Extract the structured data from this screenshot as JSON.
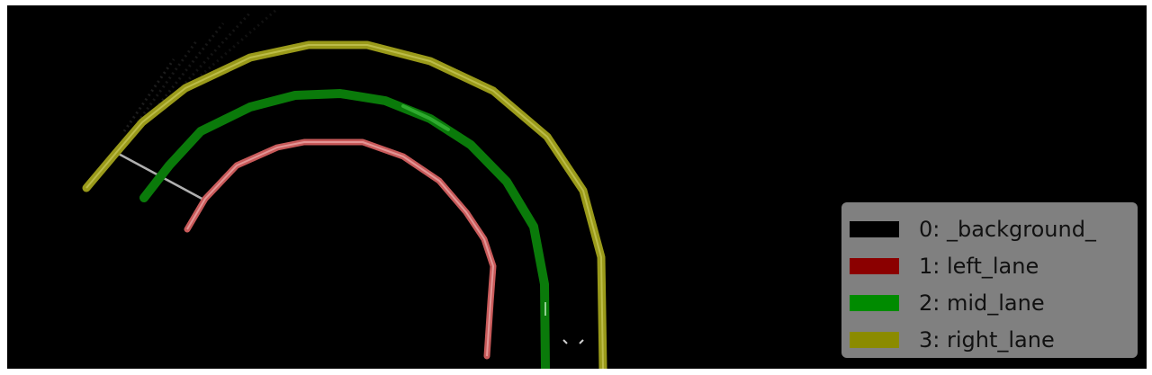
{
  "image": {
    "background_color": "#000000",
    "description_role": "segmentation-overlay"
  },
  "lanes": [
    {
      "name": "left_lane",
      "color": "#c85a5a",
      "edge_color": "#e8a0a0"
    },
    {
      "name": "mid_lane",
      "color": "#0a7a0a",
      "edge_color": "#3fbf3f"
    },
    {
      "name": "right_lane",
      "color": "#9a9a1a",
      "edge_color": "#d8d870"
    }
  ],
  "legend": {
    "items": [
      {
        "label": "0: _background_",
        "color": "#000000"
      },
      {
        "label": "1: left_lane",
        "color": "#8b0000"
      },
      {
        "label": "2: mid_lane",
        "color": "#008b00"
      },
      {
        "label": "3: right_lane",
        "color": "#8b8b00"
      }
    ]
  }
}
